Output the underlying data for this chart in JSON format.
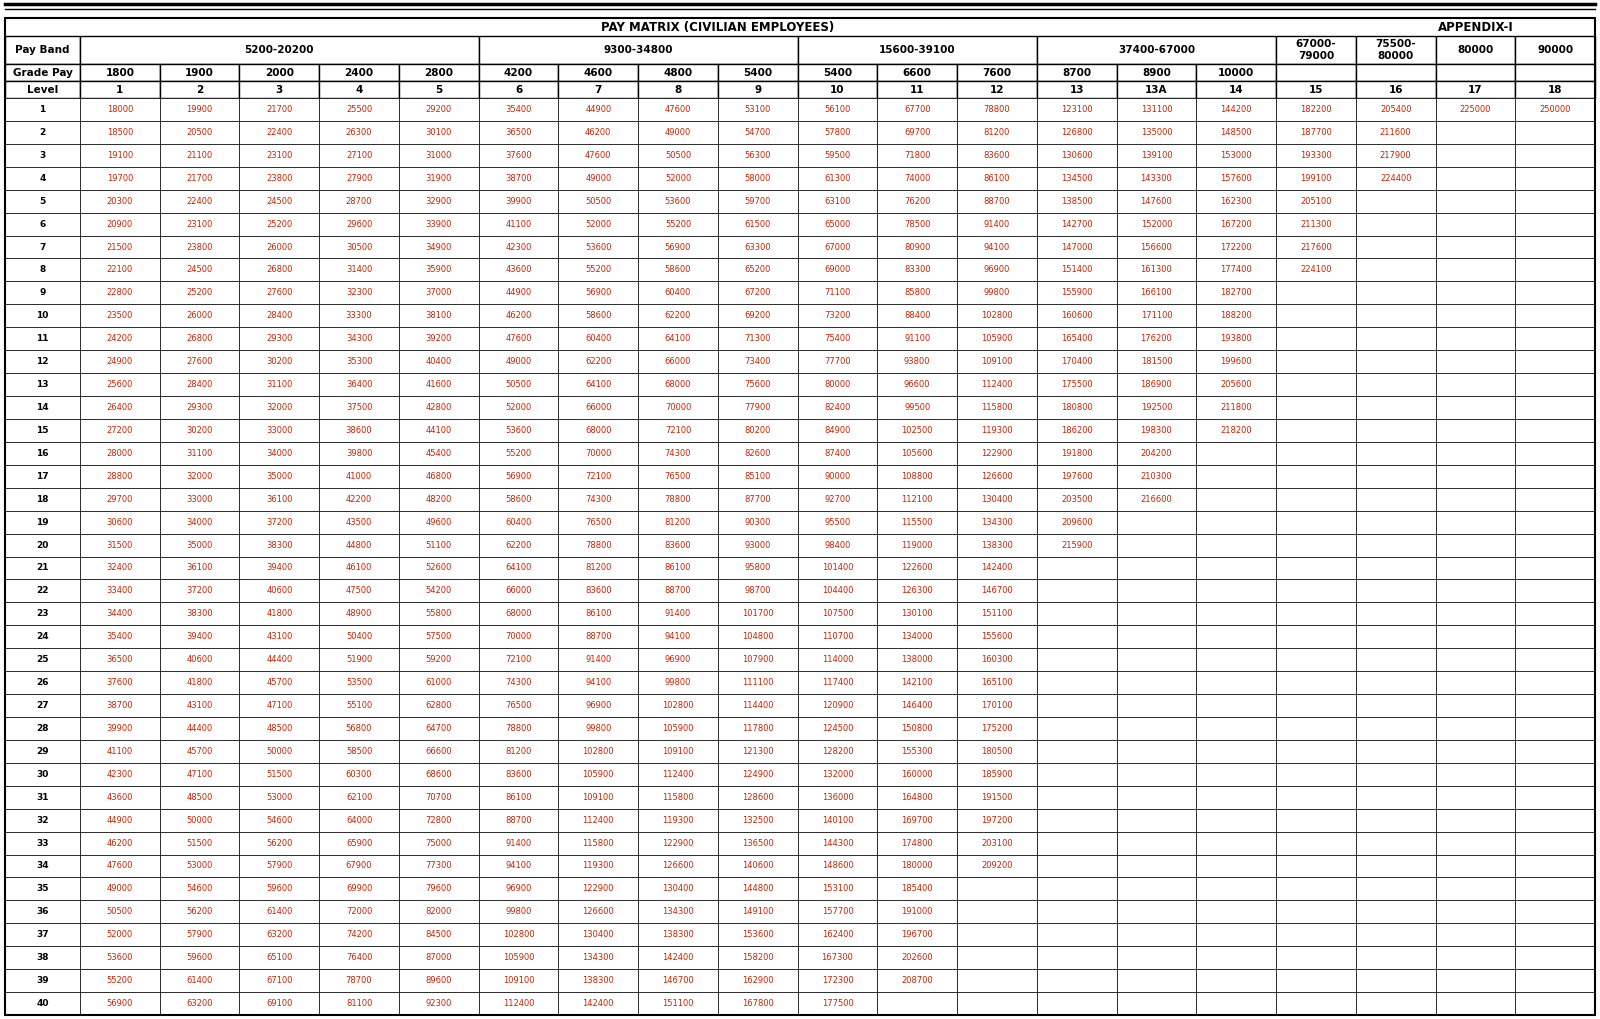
{
  "title": "PAY MATRIX (CIVILIAN EMPLOYEES)",
  "appendix": "APPENDIX-I",
  "pay_band_groups": [
    {
      "label": "5200-20200",
      "span": 5
    },
    {
      "label": "9300-34800",
      "span": 4
    },
    {
      "label": "15600-39100",
      "span": 3
    },
    {
      "label": "37400-67000",
      "span": 3
    },
    {
      "label": "67000-\n79000",
      "span": 1
    },
    {
      "label": "75500-\n80000",
      "span": 1
    },
    {
      "label": "80000",
      "span": 1
    },
    {
      "label": "90000",
      "span": 1
    }
  ],
  "grade_pays": [
    "1800",
    "1900",
    "2000",
    "2400",
    "2800",
    "4200",
    "4600",
    "4800",
    "5400",
    "5400",
    "6600",
    "7600",
    "8700",
    "8900",
    "10000",
    "",
    "",
    "",
    ""
  ],
  "levels": [
    "1",
    "2",
    "3",
    "4",
    "5",
    "6",
    "7",
    "8",
    "9",
    "10",
    "11",
    "12",
    "13",
    "13A",
    "14",
    "15",
    "16",
    "17",
    "18"
  ],
  "table_data": [
    [
      1,
      18000,
      19900,
      21700,
      25500,
      29200,
      35400,
      44900,
      47600,
      53100,
      56100,
      67700,
      78800,
      123100,
      131100,
      144200,
      182200,
      205400,
      225000,
      250000
    ],
    [
      2,
      18500,
      20500,
      22400,
      26300,
      30100,
      36500,
      46200,
      49000,
      54700,
      57800,
      69700,
      81200,
      126800,
      135000,
      148500,
      187700,
      211600,
      "",
      ""
    ],
    [
      3,
      19100,
      21100,
      23100,
      27100,
      31000,
      37600,
      47600,
      50500,
      56300,
      59500,
      71800,
      83600,
      130600,
      139100,
      153000,
      193300,
      217900,
      "",
      ""
    ],
    [
      4,
      19700,
      21700,
      23800,
      27900,
      31900,
      38700,
      49000,
      52000,
      58000,
      61300,
      74000,
      86100,
      134500,
      143300,
      157600,
      199100,
      224400,
      "",
      ""
    ],
    [
      5,
      20300,
      22400,
      24500,
      28700,
      32900,
      39900,
      50500,
      53600,
      59700,
      63100,
      76200,
      88700,
      138500,
      147600,
      162300,
      205100,
      "",
      "",
      ""
    ],
    [
      6,
      20900,
      23100,
      25200,
      29600,
      33900,
      41100,
      52000,
      55200,
      61500,
      65000,
      78500,
      91400,
      142700,
      152000,
      167200,
      211300,
      "",
      "",
      ""
    ],
    [
      7,
      21500,
      23800,
      26000,
      30500,
      34900,
      42300,
      53600,
      56900,
      63300,
      67000,
      80900,
      94100,
      147000,
      156600,
      172200,
      217600,
      "",
      "",
      ""
    ],
    [
      8,
      22100,
      24500,
      26800,
      31400,
      35900,
      43600,
      55200,
      58600,
      65200,
      69000,
      83300,
      96900,
      151400,
      161300,
      177400,
      224100,
      "",
      "",
      ""
    ],
    [
      9,
      22800,
      25200,
      27600,
      32300,
      37000,
      44900,
      56900,
      60400,
      67200,
      71100,
      85800,
      99800,
      155900,
      166100,
      182700,
      "",
      "",
      "",
      ""
    ],
    [
      10,
      23500,
      26000,
      28400,
      33300,
      38100,
      46200,
      58600,
      62200,
      69200,
      73200,
      88400,
      102800,
      160600,
      171100,
      188200,
      "",
      "",
      "",
      ""
    ],
    [
      11,
      24200,
      26800,
      29300,
      34300,
      39200,
      47600,
      60400,
      64100,
      71300,
      75400,
      91100,
      105900,
      165400,
      176200,
      193800,
      "",
      "",
      "",
      ""
    ],
    [
      12,
      24900,
      27600,
      30200,
      35300,
      40400,
      49000,
      62200,
      66000,
      73400,
      77700,
      93800,
      109100,
      170400,
      181500,
      199600,
      "",
      "",
      "",
      ""
    ],
    [
      13,
      25600,
      28400,
      31100,
      36400,
      41600,
      50500,
      64100,
      68000,
      75600,
      80000,
      96600,
      112400,
      175500,
      186900,
      205600,
      "",
      "",
      "",
      ""
    ],
    [
      14,
      26400,
      29300,
      32000,
      37500,
      42800,
      52000,
      66000,
      70000,
      77900,
      82400,
      99500,
      115800,
      180800,
      192500,
      211800,
      "",
      "",
      "",
      ""
    ],
    [
      15,
      27200,
      30200,
      33000,
      38600,
      44100,
      53600,
      68000,
      72100,
      80200,
      84900,
      102500,
      119300,
      186200,
      198300,
      218200,
      "",
      "",
      "",
      ""
    ],
    [
      16,
      28000,
      31100,
      34000,
      39800,
      45400,
      55200,
      70000,
      74300,
      82600,
      87400,
      105600,
      122900,
      191800,
      204200,
      "",
      "",
      "",
      "",
      ""
    ],
    [
      17,
      28800,
      32000,
      35000,
      41000,
      46800,
      56900,
      72100,
      76500,
      85100,
      90000,
      108800,
      126600,
      197600,
      210300,
      "",
      "",
      "",
      "",
      ""
    ],
    [
      18,
      29700,
      33000,
      36100,
      42200,
      48200,
      58600,
      74300,
      78800,
      87700,
      92700,
      112100,
      130400,
      203500,
      216600,
      "",
      "",
      "",
      "",
      ""
    ],
    [
      19,
      30600,
      34000,
      37200,
      43500,
      49600,
      60400,
      76500,
      81200,
      90300,
      95500,
      115500,
      134300,
      209600,
      "",
      "",
      "",
      "",
      "",
      ""
    ],
    [
      20,
      31500,
      35000,
      38300,
      44800,
      51100,
      62200,
      78800,
      83600,
      93000,
      98400,
      119000,
      138300,
      215900,
      "",
      "",
      "",
      "",
      "",
      ""
    ],
    [
      21,
      32400,
      36100,
      39400,
      46100,
      52600,
      64100,
      81200,
      86100,
      95800,
      101400,
      122600,
      142400,
      "",
      "",
      "",
      "",
      "",
      "",
      ""
    ],
    [
      22,
      33400,
      37200,
      40600,
      47500,
      54200,
      66000,
      83600,
      88700,
      98700,
      104400,
      126300,
      146700,
      "",
      "",
      "",
      "",
      "",
      "",
      ""
    ],
    [
      23,
      34400,
      38300,
      41800,
      48900,
      55800,
      68000,
      86100,
      91400,
      101700,
      107500,
      130100,
      151100,
      "",
      "",
      "",
      "",
      "",
      "",
      ""
    ],
    [
      24,
      35400,
      39400,
      43100,
      50400,
      57500,
      70000,
      88700,
      94100,
      104800,
      110700,
      134000,
      155600,
      "",
      "",
      "",
      "",
      "",
      "",
      ""
    ],
    [
      25,
      36500,
      40600,
      44400,
      51900,
      59200,
      72100,
      91400,
      96900,
      107900,
      114000,
      138000,
      160300,
      "",
      "",
      "",
      "",
      "",
      "",
      ""
    ],
    [
      26,
      37600,
      41800,
      45700,
      53500,
      61000,
      74300,
      94100,
      99800,
      111100,
      117400,
      142100,
      165100,
      "",
      "",
      "",
      "",
      "",
      "",
      ""
    ],
    [
      27,
      38700,
      43100,
      47100,
      55100,
      62800,
      76500,
      96900,
      102800,
      114400,
      120900,
      146400,
      170100,
      "",
      "",
      "",
      "",
      "",
      "",
      ""
    ],
    [
      28,
      39900,
      44400,
      48500,
      56800,
      64700,
      78800,
      99800,
      105900,
      117800,
      124500,
      150800,
      175200,
      "",
      "",
      "",
      "",
      "",
      "",
      ""
    ],
    [
      29,
      41100,
      45700,
      50000,
      58500,
      66600,
      81200,
      102800,
      109100,
      121300,
      128200,
      155300,
      180500,
      "",
      "",
      "",
      "",
      "",
      "",
      ""
    ],
    [
      30,
      42300,
      47100,
      51500,
      60300,
      68600,
      83600,
      105900,
      112400,
      124900,
      132000,
      160000,
      185900,
      "",
      "",
      "",
      "",
      "",
      "",
      ""
    ],
    [
      31,
      43600,
      48500,
      53000,
      62100,
      70700,
      86100,
      109100,
      115800,
      128600,
      136000,
      164800,
      191500,
      "",
      "",
      "",
      "",
      "",
      "",
      ""
    ],
    [
      32,
      44900,
      50000,
      54600,
      64000,
      72800,
      88700,
      112400,
      119300,
      132500,
      140100,
      169700,
      197200,
      "",
      "",
      "",
      "",
      "",
      "",
      ""
    ],
    [
      33,
      46200,
      51500,
      56200,
      65900,
      75000,
      91400,
      115800,
      122900,
      136500,
      144300,
      174800,
      203100,
      "",
      "",
      "",
      "",
      "",
      "",
      ""
    ],
    [
      34,
      47600,
      53000,
      57900,
      67900,
      77300,
      94100,
      119300,
      126600,
      140600,
      148600,
      180000,
      209200,
      "",
      "",
      "",
      "",
      "",
      "",
      ""
    ],
    [
      35,
      49000,
      54600,
      59600,
      69900,
      79600,
      96900,
      122900,
      130400,
      144800,
      153100,
      185400,
      "",
      "",
      "",
      "",
      "",
      "",
      "",
      ""
    ],
    [
      36,
      50500,
      56200,
      61400,
      72000,
      82000,
      99800,
      126600,
      134300,
      149100,
      157700,
      191000,
      "",
      "",
      "",
      "",
      "",
      "",
      "",
      ""
    ],
    [
      37,
      52000,
      57900,
      63200,
      74200,
      84500,
      102800,
      130400,
      138300,
      153600,
      162400,
      196700,
      "",
      "",
      "",
      "",
      "",
      "",
      "",
      ""
    ],
    [
      38,
      53600,
      59600,
      65100,
      76400,
      87000,
      105900,
      134300,
      142400,
      158200,
      167300,
      202600,
      "",
      "",
      "",
      "",
      "",
      "",
      "",
      ""
    ],
    [
      39,
      55200,
      61400,
      67100,
      78700,
      89600,
      109100,
      138300,
      146700,
      162900,
      172300,
      208700,
      "",
      "",
      "",
      "",
      "",
      "",
      "",
      ""
    ],
    [
      40,
      56900,
      63200,
      69100,
      81100,
      92300,
      112400,
      142400,
      151100,
      167800,
      177500,
      "",
      "",
      "",
      "",
      "",
      "",
      "",
      "",
      ""
    ]
  ],
  "cell_text_color": "#cc2200",
  "header_label_color": "#000000",
  "header_bg": "#ffffff",
  "cell_bg": "#ffffff",
  "border_color": "#000000",
  "title_fontsize": 8.5,
  "header_fontsize": 7.5,
  "cell_fontsize": 6.0,
  "level_fontsize": 6.5
}
